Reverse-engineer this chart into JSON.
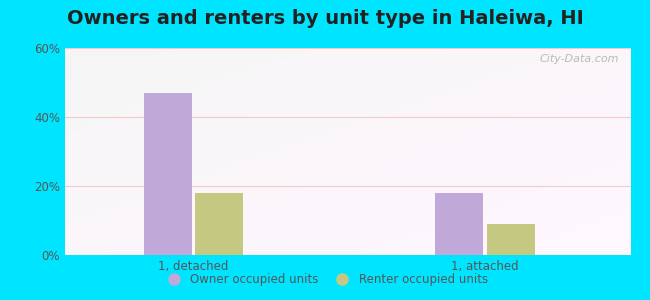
{
  "title": "Owners and renters by unit type in Haleiwa, HI",
  "categories": [
    "1, detached",
    "1, attached"
  ],
  "owner_values": [
    47,
    18
  ],
  "renter_values": [
    18,
    9
  ],
  "owner_color": "#c0a8d8",
  "renter_color": "#c5c880",
  "ylim": [
    0,
    60
  ],
  "yticks": [
    0,
    20,
    40,
    60
  ],
  "ytick_labels": [
    "0%",
    "20%",
    "40%",
    "60%"
  ],
  "legend_owner": "Owner occupied units",
  "legend_renter": "Renter occupied units",
  "outer_bg": "#00e5ff",
  "watermark": "City-Data.com",
  "title_fontsize": 14,
  "bar_width": 0.28,
  "group_positions": [
    0.8,
    2.5
  ]
}
